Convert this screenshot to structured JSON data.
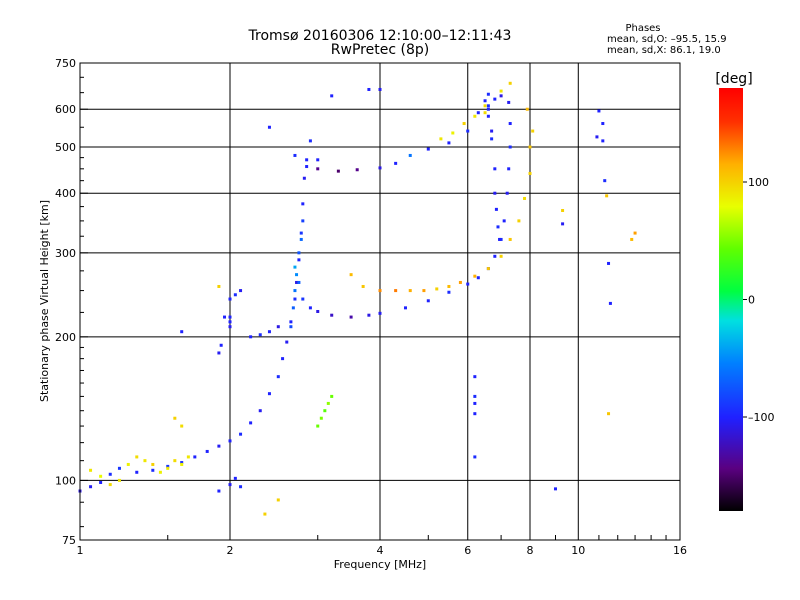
{
  "header": {
    "title_line1": "Tromsø 20160306 12:10:00–12:11:43",
    "title_line2": "RwPretec (8p)",
    "stats_title": "Phases",
    "stats_line1": "mean, sd,O: –95.5, 15.9",
    "stats_line2": "mean, sd,X:  86.1, 19.0"
  },
  "colorbar": {
    "label": "[deg]",
    "ticks": [
      {
        "value": 100,
        "label": "100"
      },
      {
        "value": 0,
        "label": "0"
      },
      {
        "value": -100,
        "label": "–100"
      }
    ],
    "range": [
      -180,
      180
    ]
  },
  "chart_data": {
    "type": "scatter",
    "title": "Tromsø 20160306 12:10:00–12:11:43",
    "subtitle": "RwPretec (8p)",
    "xlabel": "Frequency [MHz]",
    "ylabel": "Stationary phase Virtual Height [km]",
    "xscale": "log2",
    "yscale": "log",
    "xlim": [
      1,
      16
    ],
    "ylim": [
      75,
      750
    ],
    "xticks": [
      {
        "value": 1,
        "label": "1"
      },
      {
        "value": 2,
        "label": "2"
      },
      {
        "value": 4,
        "label": "4"
      },
      {
        "value": 6,
        "label": "6"
      },
      {
        "value": 8,
        "label": "8"
      },
      {
        "value": 10,
        "label": "10"
      },
      {
        "value": 16,
        "label": "16"
      }
    ],
    "yticks": [
      {
        "value": 75,
        "label": "75"
      },
      {
        "value": 100,
        "label": "100"
      },
      {
        "value": 200,
        "label": "200"
      },
      {
        "value": 300,
        "label": "300"
      },
      {
        "value": 400,
        "label": "400"
      },
      {
        "value": 500,
        "label": "500"
      },
      {
        "value": 600,
        "label": "600"
      },
      {
        "value": 750,
        "label": "750"
      }
    ],
    "vgrid": [
      2,
      4,
      6,
      8,
      10
    ],
    "hgrid": [
      100,
      200,
      300,
      400,
      500,
      600
    ],
    "grid": true,
    "color_encoding": "phase [deg]",
    "series": [
      {
        "points": [
          [
            1.0,
            95,
            -110
          ],
          [
            1.05,
            97,
            -105
          ],
          [
            1.1,
            99,
            -100
          ],
          [
            1.15,
            103,
            -95
          ],
          [
            1.2,
            106,
            -90
          ],
          [
            1.3,
            104,
            -100
          ],
          [
            1.4,
            105,
            -95
          ],
          [
            1.5,
            107,
            -90
          ],
          [
            1.6,
            109,
            -95
          ],
          [
            1.7,
            112,
            -100
          ],
          [
            1.8,
            115,
            -100
          ],
          [
            1.9,
            118,
            -105
          ],
          [
            2.0,
            121,
            -100
          ],
          [
            2.1,
            125,
            -95
          ],
          [
            2.2,
            132,
            -100
          ],
          [
            2.3,
            140,
            -105
          ],
          [
            2.4,
            152,
            -100
          ],
          [
            2.5,
            165,
            -95
          ],
          [
            2.55,
            180,
            -100
          ],
          [
            2.6,
            195,
            -105
          ],
          [
            2.65,
            215,
            -100
          ],
          [
            2.7,
            240,
            -95
          ],
          [
            2.72,
            260,
            -110
          ],
          [
            2.75,
            290,
            -100
          ],
          [
            2.78,
            330,
            -90
          ],
          [
            2.8,
            380,
            -100
          ],
          [
            2.82,
            430,
            -105
          ],
          [
            2.85,
            470,
            -100
          ]
        ]
      },
      {
        "points": [
          [
            2.65,
            210,
            -80
          ],
          [
            2.68,
            230,
            -70
          ],
          [
            2.7,
            250,
            -60
          ],
          [
            2.72,
            270,
            -50
          ],
          [
            2.75,
            300,
            -75
          ],
          [
            2.78,
            320,
            -65
          ],
          [
            2.8,
            350,
            -85
          ],
          [
            2.7,
            280,
            -40
          ],
          [
            2.75,
            260,
            -70
          ],
          [
            2.8,
            240,
            -90
          ]
        ]
      },
      {
        "points": [
          [
            2.9,
            230,
            -100
          ],
          [
            3.0,
            226,
            -110
          ],
          [
            3.2,
            222,
            -120
          ],
          [
            3.5,
            220,
            -130
          ],
          [
            3.8,
            222,
            -110
          ],
          [
            4.0,
            224,
            -105
          ],
          [
            4.5,
            230,
            -100
          ],
          [
            5.0,
            238,
            -100
          ],
          [
            5.5,
            248,
            -95
          ],
          [
            6.0,
            258,
            -100
          ],
          [
            6.3,
            266,
            -100
          ],
          [
            6.6,
            278,
            -95
          ],
          [
            6.8,
            295,
            -100
          ],
          [
            7.0,
            320,
            -95
          ],
          [
            7.1,
            350,
            -100
          ],
          [
            7.2,
            400,
            -105
          ],
          [
            7.25,
            450,
            -100
          ],
          [
            7.3,
            500,
            -95
          ],
          [
            7.3,
            560,
            -100
          ],
          [
            7.25,
            620,
            -105
          ],
          [
            7.0,
            640,
            -110
          ],
          [
            6.8,
            630,
            -100
          ],
          [
            6.6,
            610,
            -95
          ]
        ]
      },
      {
        "points": [
          [
            2.85,
            455,
            -100
          ],
          [
            3.0,
            450,
            -140
          ],
          [
            3.3,
            445,
            -150
          ],
          [
            3.6,
            448,
            -140
          ],
          [
            4.0,
            452,
            -110
          ],
          [
            4.3,
            462,
            -100
          ],
          [
            4.6,
            480,
            -60
          ],
          [
            5.0,
            495,
            -100
          ],
          [
            5.5,
            510,
            -100
          ],
          [
            6.0,
            540,
            -95
          ],
          [
            6.3,
            590,
            -100
          ],
          [
            6.5,
            625,
            -100
          ],
          [
            6.6,
            645,
            -95
          ]
        ]
      },
      {
        "points": [
          [
            6.6,
            580,
            -100
          ],
          [
            6.7,
            520,
            -95
          ],
          [
            6.8,
            450,
            -100
          ],
          [
            6.8,
            400,
            -105
          ],
          [
            6.85,
            370,
            -100
          ],
          [
            6.9,
            340,
            -95
          ],
          [
            6.95,
            320,
            -100
          ],
          [
            6.6,
            600,
            -100
          ],
          [
            6.7,
            540,
            -105
          ]
        ]
      },
      {
        "points": [
          [
            3.5,
            270,
            110
          ],
          [
            3.7,
            255,
            105
          ],
          [
            4.0,
            250,
            125
          ],
          [
            4.3,
            250,
            130
          ],
          [
            4.6,
            250,
            115
          ],
          [
            4.9,
            250,
            120
          ],
          [
            5.2,
            252,
            100
          ],
          [
            5.5,
            255,
            110
          ],
          [
            5.8,
            260,
            120
          ],
          [
            6.2,
            268,
            115
          ],
          [
            6.6,
            278,
            105
          ],
          [
            7.0,
            295,
            100
          ],
          [
            7.3,
            320,
            105
          ],
          [
            7.6,
            350,
            100
          ],
          [
            7.8,
            390,
            95
          ],
          [
            8.0,
            440,
            100
          ],
          [
            8.0,
            500,
            105
          ],
          [
            8.1,
            540,
            100
          ],
          [
            7.9,
            600,
            110
          ]
        ]
      },
      {
        "points": [
          [
            5.3,
            520,
            90
          ],
          [
            5.6,
            535,
            85
          ],
          [
            5.9,
            560,
            100
          ],
          [
            6.2,
            580,
            90
          ],
          [
            6.5,
            590,
            95
          ]
        ]
      },
      {
        "points": [
          [
            1.05,
            105,
            90
          ],
          [
            1.1,
            102,
            80
          ],
          [
            1.15,
            98,
            95
          ],
          [
            1.2,
            100,
            90
          ],
          [
            1.25,
            108,
            85
          ],
          [
            1.3,
            112,
            95
          ],
          [
            1.35,
            110,
            90
          ],
          [
            1.4,
            108,
            100
          ],
          [
            1.45,
            104,
            85
          ],
          [
            1.5,
            106,
            90
          ],
          [
            1.55,
            110,
            95
          ],
          [
            1.6,
            108,
            85
          ],
          [
            1.65,
            112,
            90
          ]
        ]
      },
      {
        "points": [
          [
            3.0,
            130,
            45
          ],
          [
            3.05,
            135,
            50
          ],
          [
            3.1,
            140,
            40
          ],
          [
            3.15,
            145,
            55
          ],
          [
            3.2,
            150,
            45
          ]
        ]
      },
      {
        "points": [
          [
            1.6,
            205,
            -100
          ],
          [
            1.9,
            185,
            -105
          ],
          [
            1.92,
            192,
            -100
          ],
          [
            1.95,
            220,
            -100
          ],
          [
            2.0,
            240,
            -100
          ],
          [
            2.05,
            245,
            -95
          ],
          [
            2.1,
            250,
            -105
          ],
          [
            2.0,
            215,
            -100
          ],
          [
            2.0,
            210,
            -105
          ]
        ]
      },
      {
        "points": [
          [
            2.2,
            200,
            -100
          ],
          [
            2.3,
            202,
            -95
          ],
          [
            2.4,
            205,
            -100
          ],
          [
            2.5,
            210,
            -110
          ]
        ]
      },
      {
        "points": [
          [
            1.9,
            95,
            -100
          ],
          [
            2.0,
            98,
            -105
          ],
          [
            2.05,
            101,
            -100
          ],
          [
            2.1,
            97,
            -95
          ]
        ]
      },
      {
        "points": [
          [
            6.2,
            165,
            -100
          ],
          [
            6.2,
            150,
            -95
          ],
          [
            6.2,
            145,
            -100
          ],
          [
            6.2,
            138,
            -100
          ],
          [
            6.2,
            112,
            -95
          ],
          [
            9.0,
            96,
            -100
          ],
          [
            9.3,
            368,
            100
          ],
          [
            9.3,
            345,
            -105
          ],
          [
            11.0,
            595,
            -100
          ],
          [
            11.2,
            560,
            -100
          ],
          [
            11.3,
            425,
            -95
          ],
          [
            11.4,
            395,
            105
          ],
          [
            11.5,
            285,
            -100
          ],
          [
            11.6,
            235,
            -100
          ],
          [
            11.5,
            138,
            105
          ],
          [
            12.8,
            320,
            110
          ],
          [
            13.0,
            330,
            120
          ],
          [
            10.9,
            525,
            -105
          ],
          [
            11.2,
            515,
            -100
          ],
          [
            3.8,
            660,
            -100
          ],
          [
            4.0,
            660,
            -105
          ],
          [
            3.2,
            640,
            -100
          ],
          [
            3.0,
            470,
            -100
          ],
          [
            2.4,
            550,
            -100
          ],
          [
            2.9,
            515,
            -95
          ],
          [
            2.0,
            220,
            -100
          ],
          [
            2.7,
            480,
            -95
          ]
        ]
      },
      {
        "points": [
          [
            1.55,
            135,
            100
          ],
          [
            1.6,
            130,
            95
          ],
          [
            1.9,
            255,
            100
          ],
          [
            2.35,
            85,
            100
          ],
          [
            2.5,
            91,
            100
          ],
          [
            7.3,
            680,
            100
          ],
          [
            7.0,
            655,
            90
          ],
          [
            6.5,
            610,
            95
          ]
        ]
      }
    ]
  }
}
